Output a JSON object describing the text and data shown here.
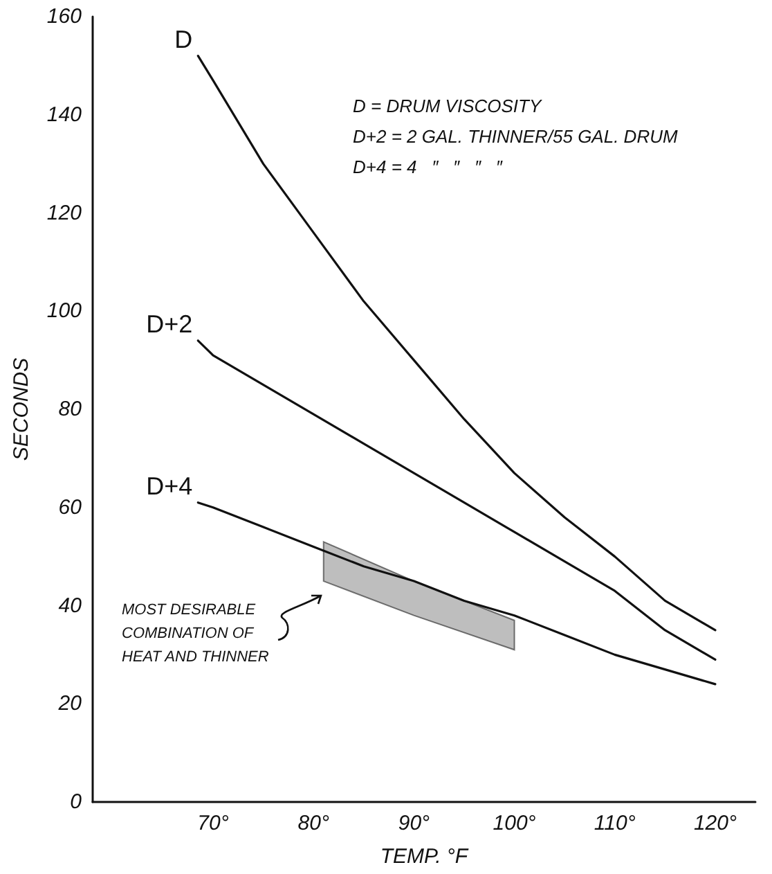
{
  "chart_data": {
    "type": "line",
    "xlabel": "TEMP. °F",
    "ylabel": "SECONDS",
    "xlim": [
      58,
      124
    ],
    "ylim": [
      0,
      160
    ],
    "xticks": [
      {
        "value": 70,
        "label": "70°"
      },
      {
        "value": 80,
        "label": "80°"
      },
      {
        "value": 90,
        "label": "90°"
      },
      {
        "value": 100,
        "label": "100°"
      },
      {
        "value": 110,
        "label": "110°"
      },
      {
        "value": 120,
        "label": "120°"
      }
    ],
    "yticks": [
      0,
      20,
      40,
      60,
      80,
      100,
      120,
      140,
      160
    ],
    "grid": false,
    "marker": "none",
    "line_style": "solid",
    "series": [
      {
        "name": "D",
        "color": "#111111",
        "x": [
          68.5,
          70,
          75,
          80,
          85,
          90,
          95,
          100,
          105,
          110,
          115,
          120
        ],
        "values": [
          152,
          147,
          130,
          116,
          102,
          90,
          78,
          67,
          58,
          50,
          41,
          35
        ]
      },
      {
        "name": "D+2",
        "color": "#111111",
        "x": [
          68.5,
          70,
          75,
          80,
          85,
          90,
          95,
          100,
          105,
          110,
          115,
          120
        ],
        "values": [
          94,
          91,
          85,
          79,
          73,
          67,
          61,
          55,
          49,
          43,
          35,
          29
        ]
      },
      {
        "name": "D+4",
        "color": "#111111",
        "x": [
          68.5,
          70,
          75,
          80,
          85,
          90,
          95,
          100,
          105,
          110,
          115,
          120
        ],
        "values": [
          61,
          60,
          56,
          52,
          48,
          45,
          41,
          38,
          34,
          30,
          27,
          24
        ]
      },
      {
        "type": "area",
        "color": "#888888",
        "x": [
          81,
          90,
          100
        ],
        "values": [
          null,
          null,
          null
        ],
        "lower": [
          45,
          38,
          31
        ],
        "upper": [
          53,
          45,
          37
        ]
      }
    ],
    "annotations": [
      "D = DRUM VISCOSITY",
      "D+2 = 2 GAL. THINNER/55 GAL. DRUM",
      "D+4 = 4   ″   ″   ″   ″",
      "MOST DESIRABLE\nCOMBINATION OF\nHEAT AND THINNER"
    ]
  }
}
